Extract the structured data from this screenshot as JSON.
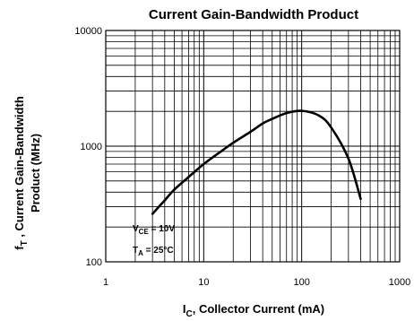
{
  "chart_data": {
    "type": "line",
    "title": "Current Gain-Bandwidth Product",
    "xlabel": {
      "main": "I",
      "sub": "C",
      "rest": ", Collector Current (mA)"
    },
    "ylabel": {
      "main": "f",
      "sub": "T",
      "line1_rest": " , Current Gain-Bandwidth",
      "line2": "Product (MHz)"
    },
    "x_scale": "log",
    "y_scale": "log",
    "xlim": [
      1,
      1000
    ],
    "ylim": [
      100,
      10000
    ],
    "x_ticks": [
      "1",
      "10",
      "100",
      "1000"
    ],
    "y_ticks": [
      "100",
      "1000",
      "10000"
    ],
    "grid": true,
    "annotations": [
      {
        "main": "V",
        "sub": "CE",
        "rest": " = 10V"
      },
      {
        "main": "T",
        "sub": "A",
        "rest": " = 25°C"
      }
    ],
    "series": [
      {
        "x": [
          3,
          4,
          5,
          7,
          10,
          15,
          20,
          30,
          40,
          50,
          70,
          100,
          150,
          200,
          300,
          400
        ],
        "y": [
          260,
          340,
          420,
          540,
          700,
          900,
          1070,
          1330,
          1570,
          1720,
          1930,
          2020,
          1840,
          1450,
          780,
          350
        ]
      }
    ]
  }
}
